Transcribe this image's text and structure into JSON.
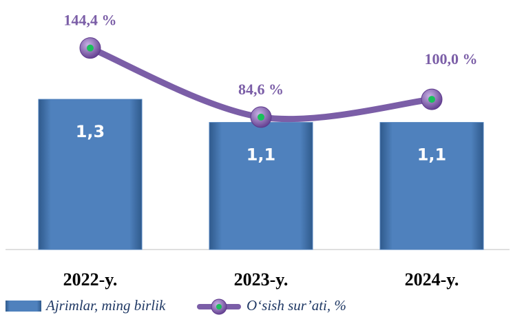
{
  "chart_data": {
    "type": "bar_line",
    "categories": [
      "2022-y.",
      "2023-y.",
      "2024-y."
    ],
    "series": [
      {
        "name": "Ajrimlar, ming birlik",
        "type": "bar",
        "color": "#4f81bd",
        "values": [
          1.3,
          1.1,
          1.1
        ],
        "value_labels": [
          "1,3",
          "1,1",
          "1,1"
        ]
      },
      {
        "name": "O‘sish sur’ati, %",
        "type": "line",
        "axis": "y2",
        "color": "#7b5ea7",
        "values": [
          144.4,
          84.6,
          100.0
        ],
        "value_labels": [
          "144,4 %",
          "84,6 %",
          "100,0 %"
        ]
      }
    ],
    "ylim": [
      0,
      2.1
    ],
    "y2lim": [
      -30,
      180
    ]
  }
}
